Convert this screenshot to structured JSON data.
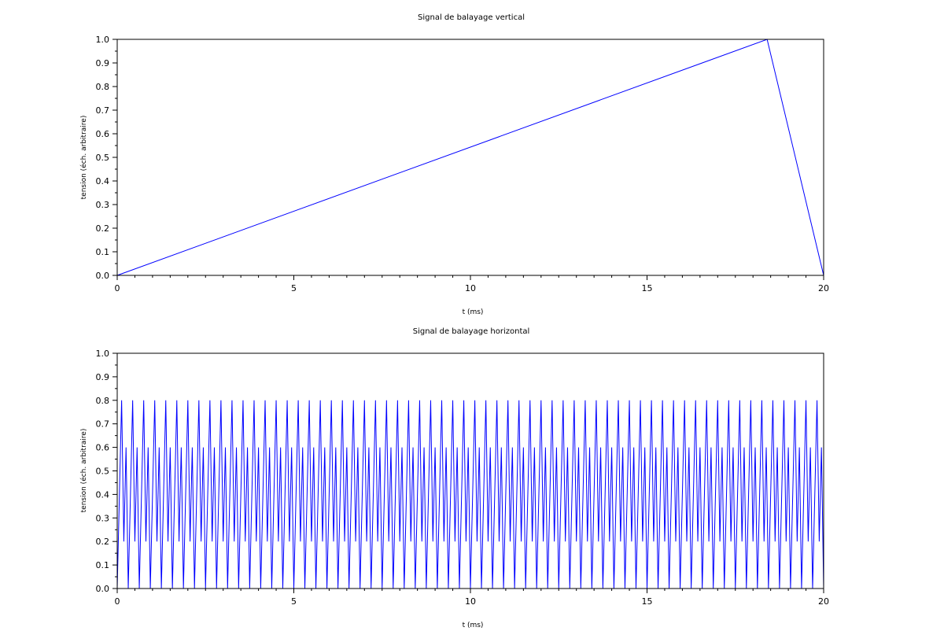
{
  "chart_data": [
    {
      "type": "line",
      "title": "Signal de balayage vertical",
      "xlabel": "t (ms)",
      "ylabel": "tension (éch. arbitraire)",
      "xlim": [
        0,
        20
      ],
      "ylim": [
        0,
        1
      ],
      "xticks": [
        "0",
        "5",
        "10",
        "15",
        "20"
      ],
      "yticks": [
        "0.0",
        "0.1",
        "0.2",
        "0.3",
        "0.4",
        "0.5",
        "0.6",
        "0.7",
        "0.8",
        "0.9",
        "1.0"
      ],
      "grid": false,
      "color": "#0000ff",
      "series": [
        {
          "x": [
            0,
            18.4,
            20.0
          ],
          "y": [
            0.0,
            1.0,
            0.0
          ]
        }
      ]
    },
    {
      "type": "line",
      "title": "Signal de balayage horizontal",
      "xlabel": "t (ms)",
      "ylabel": "tension (éch. arbitraire)",
      "xlim": [
        0,
        20
      ],
      "ylim": [
        0,
        1
      ],
      "xticks": [
        "0",
        "5",
        "10",
        "15",
        "20"
      ],
      "yticks": [
        "0.0",
        "0.1",
        "0.2",
        "0.3",
        "0.4",
        "0.5",
        "0.6",
        "0.7",
        "0.8",
        "0.9",
        "1.0"
      ],
      "grid": false,
      "color": "#0000ff",
      "series": [
        {
          "form": "sawtooth (sampled), amplitude 0 to 1",
          "period_ms": 0.15625,
          "t_start": 0,
          "t_end": 20,
          "sample_step_ms": 0.0625
        }
      ]
    }
  ]
}
